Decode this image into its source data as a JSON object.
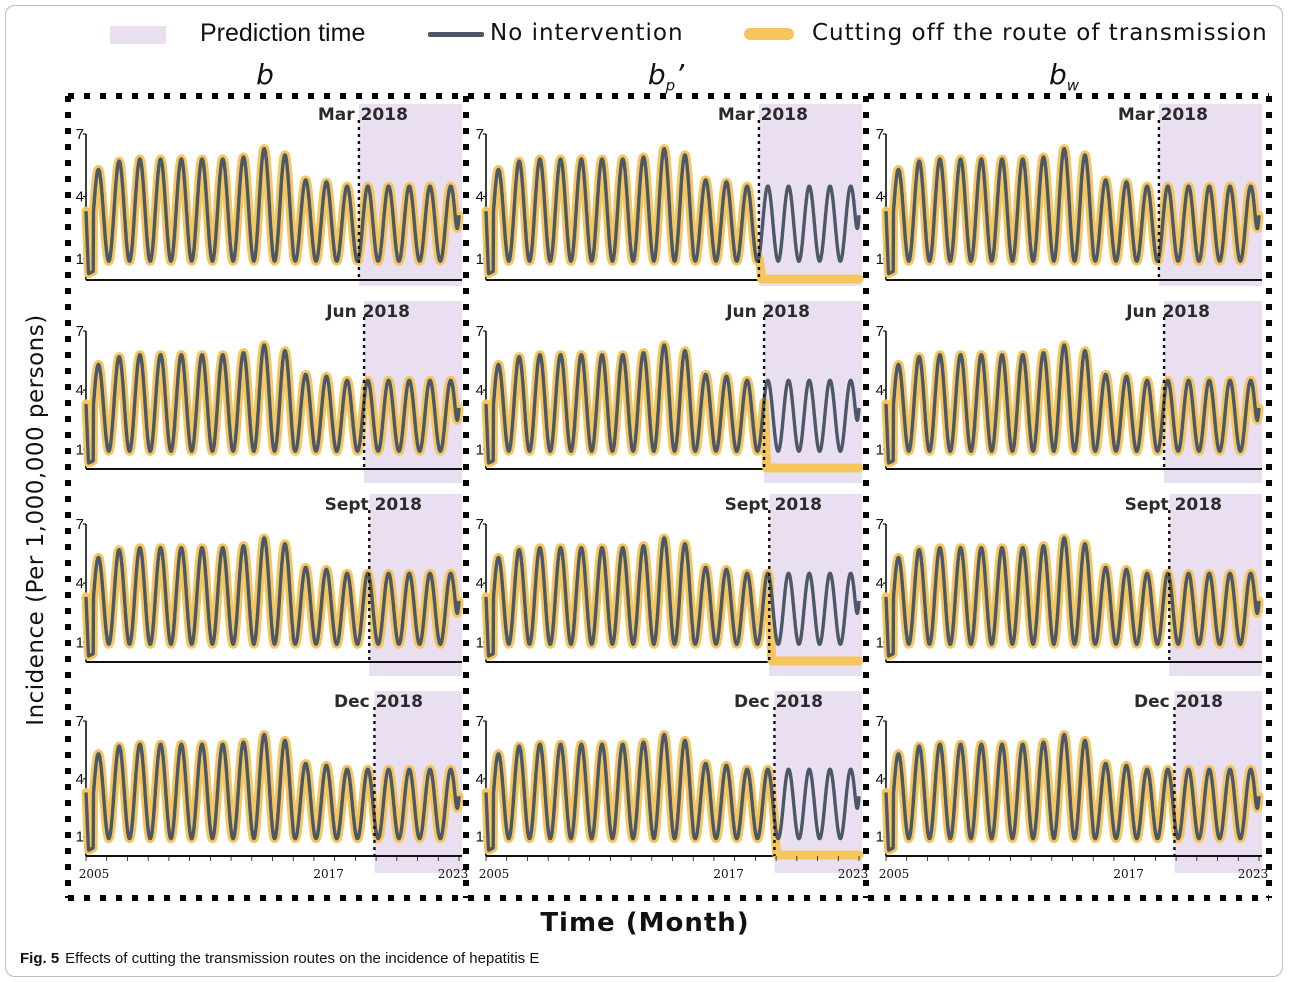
{
  "legend": {
    "prediction_label": "Prediction time",
    "no_intervention_label": "No intervention",
    "cutting_label": "Cutting off the route of transmission"
  },
  "columns": [
    {
      "symbol": "b",
      "sub": "",
      "suffix": ""
    },
    {
      "symbol": "b",
      "sub": "p",
      "suffix": "’"
    },
    {
      "symbol": "b",
      "sub": "w",
      "suffix": ""
    }
  ],
  "ylabel": "Incidence (Per 1,000,000 persons)",
  "xlabel": "Time (Month)",
  "caption": {
    "fig": "Fig. 5",
    "text": "Effects of cutting the transmission routes on the incidence of hepatitis E"
  },
  "colors": {
    "prediction": "#eadff0",
    "no_intervention": "#4a5868",
    "cutting": "#f6c65e"
  },
  "chart_data": {
    "type": "line",
    "xlim": [
      2005,
      2023
    ],
    "ylim": [
      0,
      7
    ],
    "y_ticks": [
      1,
      4,
      7
    ],
    "x_ticks": [
      2005,
      2017,
      2023
    ],
    "series_names": [
      "No intervention",
      "Cutting off the route of transmission"
    ],
    "seasonal_peaks": [
      {
        "year": 2005,
        "peak": 5.3
      },
      {
        "year": 2006,
        "peak": 5.7
      },
      {
        "year": 2007,
        "peak": 5.8
      },
      {
        "year": 2008,
        "peak": 5.8
      },
      {
        "year": 2009,
        "peak": 5.8
      },
      {
        "year": 2010,
        "peak": 5.8
      },
      {
        "year": 2011,
        "peak": 5.8
      },
      {
        "year": 2012,
        "peak": 5.9
      },
      {
        "year": 2013,
        "peak": 6.3
      },
      {
        "year": 2014,
        "peak": 6.0
      },
      {
        "year": 2015,
        "peak": 4.8
      },
      {
        "year": 2016,
        "peak": 4.7
      },
      {
        "year": 2017,
        "peak": 4.5
      },
      {
        "year": 2018,
        "peak": 4.5
      },
      {
        "year": 2019,
        "peak": 4.5
      },
      {
        "year": 2020,
        "peak": 4.5
      },
      {
        "year": 2021,
        "peak": 4.5
      },
      {
        "year": 2022,
        "peak": 4.5
      }
    ],
    "seasonal_trough": 0.9,
    "initial_value": 3.3,
    "initial_dip": 0.3,
    "end_value": 3.1,
    "rows": [
      {
        "label": "Mar 2018",
        "intervention": 2018.17
      },
      {
        "label": "Jun 2018",
        "intervention": 2018.42
      },
      {
        "label": "Sept 2018",
        "intervention": 2018.67
      },
      {
        "label": "Dec 2018",
        "intervention": 2018.92
      }
    ],
    "prediction_period": [
      2018.17,
      2023
    ],
    "panels_drop_to_zero": [
      "b_p'"
    ],
    "after_drop_value": 0.05
  }
}
